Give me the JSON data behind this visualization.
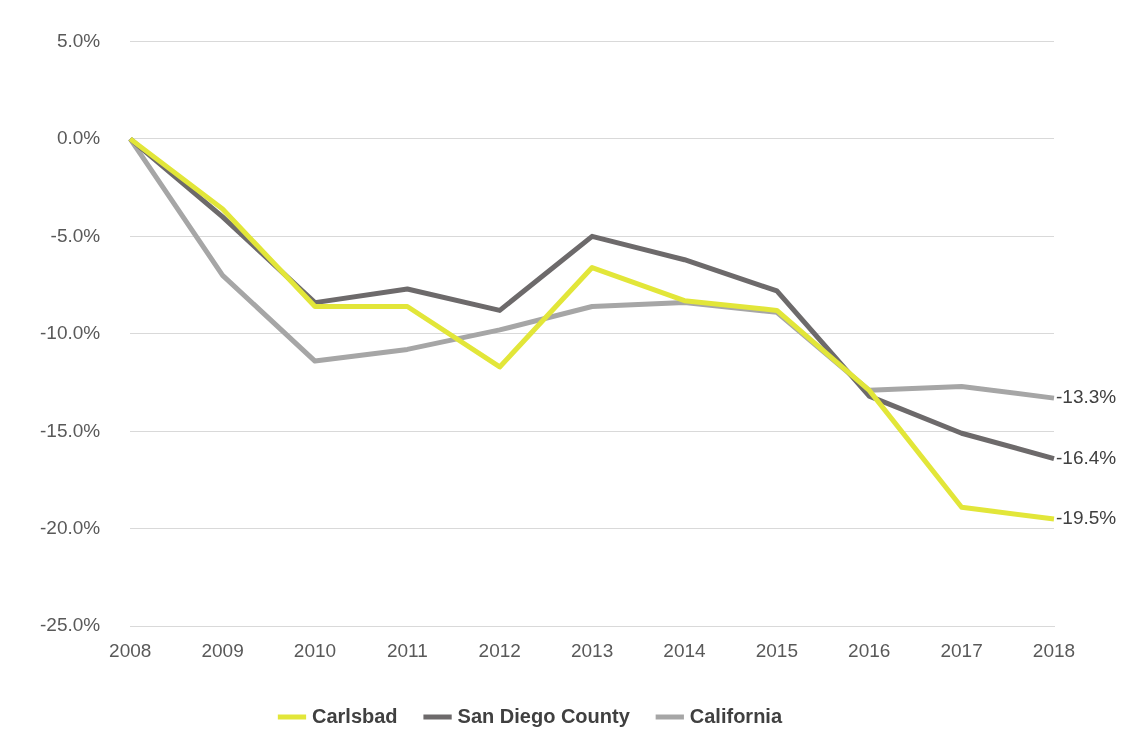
{
  "chart_data": {
    "type": "line",
    "categories": [
      "2008",
      "2009",
      "2010",
      "2011",
      "2012",
      "2013",
      "2014",
      "2015",
      "2016",
      "2017",
      "2018"
    ],
    "series": [
      {
        "name": "Carlsbad",
        "color": "#e2e639",
        "values": [
          0,
          -3.6,
          -8.6,
          -8.6,
          -11.7,
          -6.6,
          -8.3,
          -8.8,
          -12.9,
          -18.9,
          -19.5
        ],
        "value_labels": [
          null,
          null,
          null,
          null,
          null,
          null,
          null,
          null,
          null,
          null,
          "-19.5%"
        ]
      },
      {
        "name": "San Diego County",
        "color": "#6d6a6b",
        "values": [
          0,
          -4.0,
          -8.4,
          -7.7,
          -8.8,
          -5.0,
          -6.2,
          -7.8,
          -13.2,
          -15.1,
          -16.4
        ],
        "value_labels": [
          null,
          null,
          null,
          null,
          null,
          null,
          null,
          null,
          null,
          null,
          "-16.4%"
        ]
      },
      {
        "name": "California",
        "color": "#a6a6a6",
        "values": [
          0,
          -7.0,
          -11.4,
          -10.8,
          -9.8,
          -8.6,
          -8.4,
          -8.9,
          -12.9,
          -12.7,
          -13.3
        ],
        "value_labels": [
          null,
          null,
          null,
          null,
          null,
          null,
          null,
          null,
          null,
          null,
          "-13.3%"
        ]
      }
    ],
    "ylim": [
      -25,
      5
    ],
    "yticks": [
      {
        "value": -25,
        "label": "-25.0%"
      },
      {
        "value": -20,
        "label": "-20.0%"
      },
      {
        "value": -15,
        "label": "-15.0%"
      },
      {
        "value": -10,
        "label": "-10.0%"
      },
      {
        "value": -5,
        "label": "-5.0%"
      },
      {
        "value": 0,
        "label": "0.0%"
      },
      {
        "value": 5,
        "label": "5.0%"
      }
    ],
    "grid": "y",
    "legend": "bottom",
    "marker": "none",
    "line_style": "solid"
  }
}
